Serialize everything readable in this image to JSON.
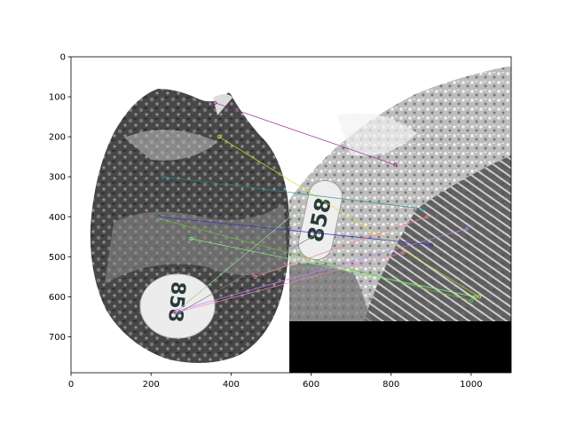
{
  "figure": {
    "x_ticks": [
      "0",
      "200",
      "400",
      "600",
      "800",
      "1000"
    ],
    "y_ticks": [
      "0",
      "100",
      "200",
      "300",
      "400",
      "500",
      "600",
      "700"
    ],
    "xlim": [
      0,
      1100
    ],
    "ylim": [
      790,
      0
    ],
    "image_content": "two grayscale photos of an oyster shell with a '858' tag, side by side, connected by colored feature-match lines",
    "colors": {
      "left_shell_dark": "#3a3a3a",
      "right_shell_light": "#cfcfcf",
      "tag": "#eeeeee",
      "black_pad": "#000000"
    }
  },
  "tag_text": {
    "left": "858",
    "right": "858"
  },
  "matches": [
    {
      "x1": 360,
      "y1": 115,
      "x2": 810,
      "y2": 270,
      "color": "#a0208f"
    },
    {
      "x1": 370,
      "y1": 200,
      "x2": 1020,
      "y2": 600,
      "color": "#e0e020"
    },
    {
      "x1": 230,
      "y1": 300,
      "x2": 880,
      "y2": 380,
      "color": "#208f8f"
    },
    {
      "x1": 220,
      "y1": 400,
      "x2": 900,
      "y2": 470,
      "color": "#3030c8"
    },
    {
      "x1": 220,
      "y1": 405,
      "x2": 1000,
      "y2": 610,
      "color": "#70c030"
    },
    {
      "x1": 260,
      "y1": 640,
      "x2": 560,
      "y2": 390,
      "color": "#90d090"
    },
    {
      "x1": 260,
      "y1": 640,
      "x2": 830,
      "y2": 490,
      "color": "#ff80c0"
    },
    {
      "x1": 265,
      "y1": 635,
      "x2": 990,
      "y2": 430,
      "color": "#c080ff"
    },
    {
      "x1": 270,
      "y1": 640,
      "x2": 620,
      "y2": 440,
      "color": "#808080"
    },
    {
      "x1": 460,
      "y1": 550,
      "x2": 890,
      "y2": 400,
      "color": "#ff8080"
    },
    {
      "x1": 300,
      "y1": 455,
      "x2": 1010,
      "y2": 600,
      "color": "#80ff80"
    }
  ]
}
